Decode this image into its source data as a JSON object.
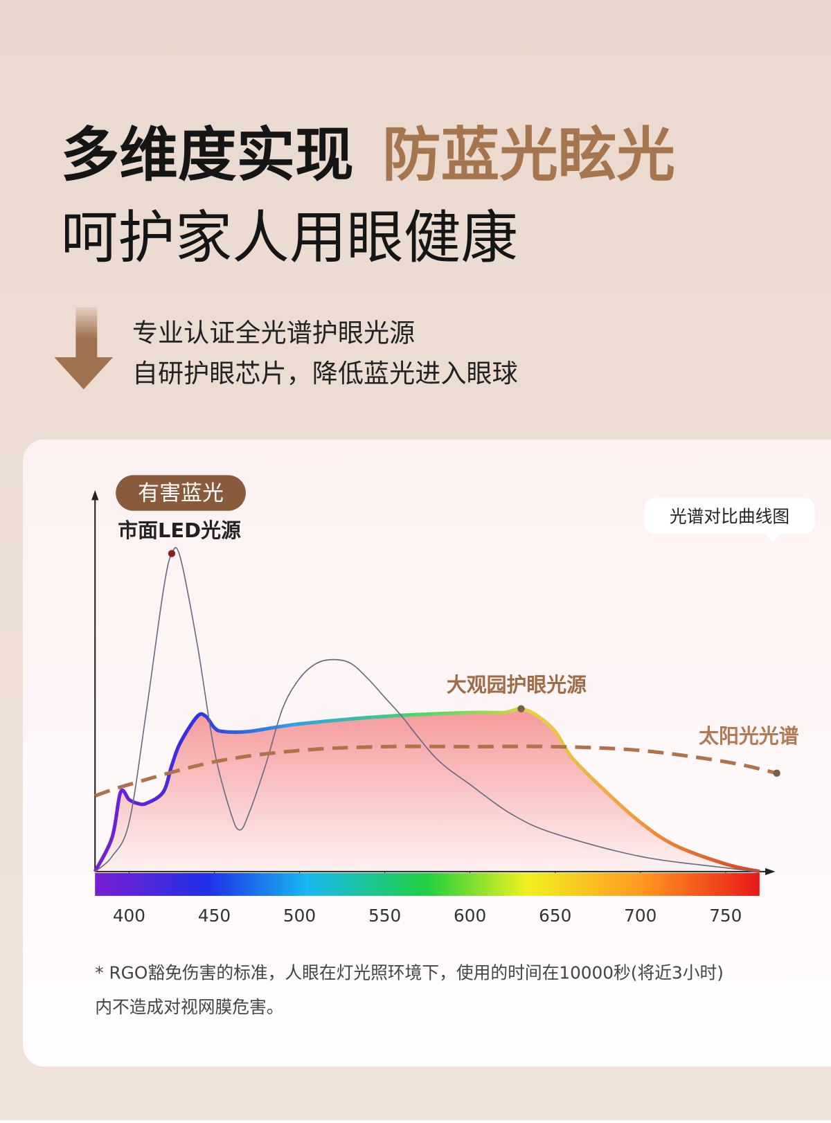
{
  "header": {
    "title_black": "多维度实现",
    "title_accent": "防蓝光眩光",
    "subtitle": "呵护家人用眼健康",
    "points": [
      "专业认证全光谱护眼光源",
      "自研护眼芯片，降低蓝光进入眼球"
    ]
  },
  "chart_data": {
    "type": "line",
    "badge": "有害蓝光",
    "chart_label": "光谱对比曲线图",
    "xlim": [
      380,
      785
    ],
    "ylim": [
      0,
      100
    ],
    "xticks": [
      400,
      450,
      500,
      550,
      600,
      650,
      700,
      750
    ],
    "series": [
      {
        "name": "市面LED光源",
        "color": "#676c80",
        "dash": false,
        "fill": false,
        "x": [
          380,
          390,
          400,
          410,
          420,
          425,
          430,
          440,
          450,
          460,
          465,
          470,
          480,
          490,
          500,
          510,
          520,
          530,
          540,
          550,
          560,
          580,
          600,
          625,
          650,
          700,
          750,
          770
        ],
        "values": [
          0,
          4,
          13,
          42,
          74,
          84,
          83,
          60,
          32,
          15,
          11,
          15,
          28,
          43,
          51,
          55,
          56,
          55,
          51,
          46,
          41,
          30,
          23,
          15,
          10,
          4,
          1,
          0
        ]
      },
      {
        "name": "大观园护眼光源",
        "color": "#f0676a",
        "dash": false,
        "fill": true,
        "x": [
          380,
          390,
          395,
          400,
          405,
          410,
          420,
          425,
          430,
          440,
          445,
          450,
          455,
          470,
          500,
          550,
          600,
          620,
          630,
          640,
          650,
          660,
          680,
          700,
          720,
          750,
          770
        ],
        "values": [
          0,
          9,
          21,
          19,
          18,
          18,
          21,
          28,
          34,
          41,
          41,
          38,
          37,
          37,
          39,
          41,
          42,
          42,
          43,
          41,
          37,
          30,
          21,
          13,
          7,
          2,
          0
        ]
      },
      {
        "name": "太阳光光谱",
        "color": "#b0724a",
        "dash": true,
        "fill": false,
        "x": [
          380,
          400,
          450,
          500,
          550,
          600,
          650,
          700,
          750,
          780
        ],
        "values": [
          20,
          23,
          29,
          32,
          33,
          33,
          33,
          32,
          29,
          26
        ]
      }
    ]
  },
  "footnote": [
    "* RGO豁免伤害的标准，人眼在灯光照环境下，使用的时间在10000秒(将近3小时)",
    "内不造成对视网膜危害。"
  ]
}
